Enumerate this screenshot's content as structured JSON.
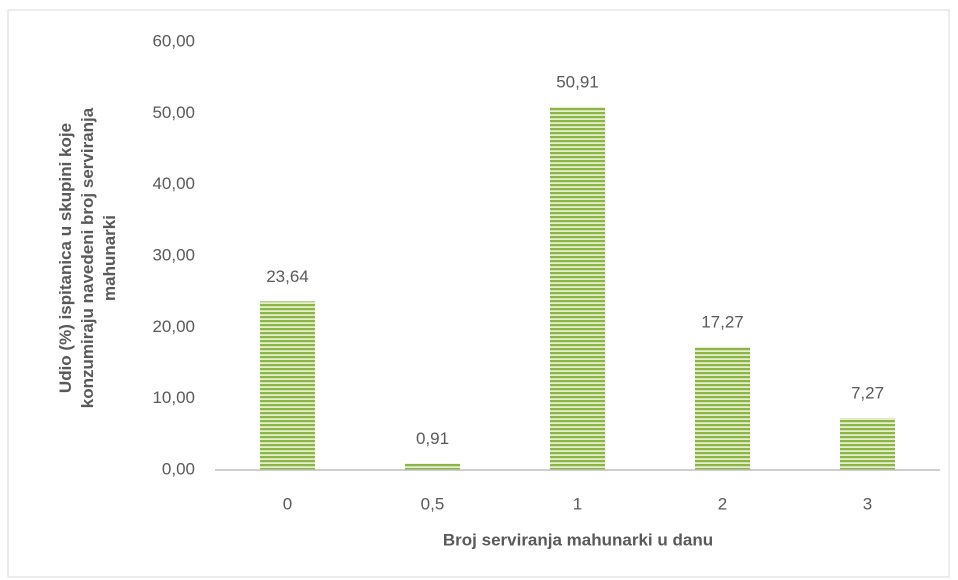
{
  "chart_data": {
    "type": "bar",
    "ylabel": "Udio (%) ispitanica u skupini koje konzumiraju navedeni broj serviranja mahunarki",
    "xlabel": "Broj serviranja mahunarki u danu",
    "categories": [
      "0",
      "0,5",
      "1",
      "2",
      "3"
    ],
    "values": [
      23.64,
      0.91,
      50.91,
      17.27,
      7.27
    ],
    "value_labels": [
      "23,64",
      "0,91",
      "50,91",
      "17,27",
      "7,27"
    ],
    "color": "#8db544",
    "ylim": [
      0,
      60
    ],
    "yticks": [
      {
        "value": 0,
        "label": "0,00"
      },
      {
        "value": 10,
        "label": "10,00"
      },
      {
        "value": 20,
        "label": "20,00"
      },
      {
        "value": 30,
        "label": "30,00"
      },
      {
        "value": 40,
        "label": "40,00"
      },
      {
        "value": 50,
        "label": "50,00"
      },
      {
        "value": 60,
        "label": "60,00"
      }
    ],
    "grid": false
  }
}
